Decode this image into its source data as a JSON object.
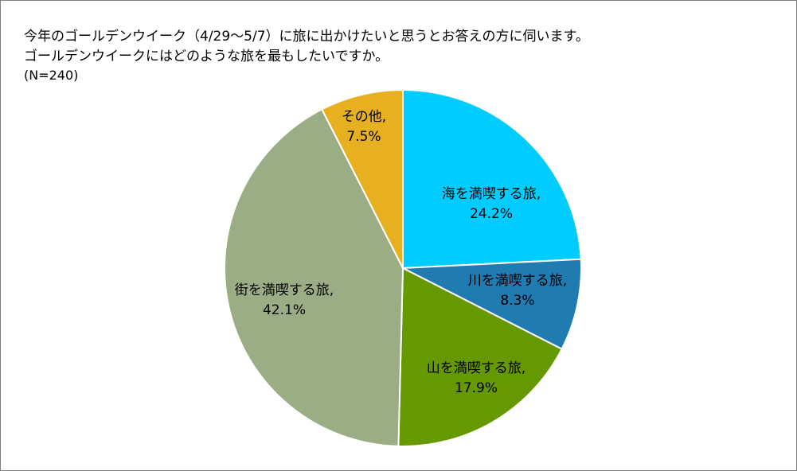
{
  "title_lines": [
    "今年のゴールデンウイーク（4/29〜5/7）に旅に出かけたいと思うとお答えの方に伺います。",
    "ゴールデンウイークにはどのような旅を最もしたいですか。"
  ],
  "subtitle": "(N=240)",
  "chart_data": {
    "type": "pie",
    "title": "今年のゴールデンウイーク（4/29〜5/7）に旅に出かけたいと思うとお答えの方に伺います。ゴールデンウイークにはどのような旅を最もしたいですか。",
    "n": "(N=240)",
    "start": "12 o'clock",
    "direction": "clockwise",
    "slices": [
      {
        "label": "海を満喫する旅,",
        "percent_label": "24.2%",
        "value": 24.2,
        "color": "#00ccff"
      },
      {
        "label": "川を満喫する旅,",
        "percent_label": "8.3%",
        "value": 8.3,
        "color": "#1f7bb0"
      },
      {
        "label": "山を満喫する旅,",
        "percent_label": "17.9%",
        "value": 17.9,
        "color": "#669900"
      },
      {
        "label": "街を満喫する旅,",
        "percent_label": "42.1%",
        "value": 42.1,
        "color": "#9aad84"
      },
      {
        "label": "その他,",
        "percent_label": "7.5%",
        "value": 7.5,
        "color": "#e6b020"
      }
    ]
  }
}
